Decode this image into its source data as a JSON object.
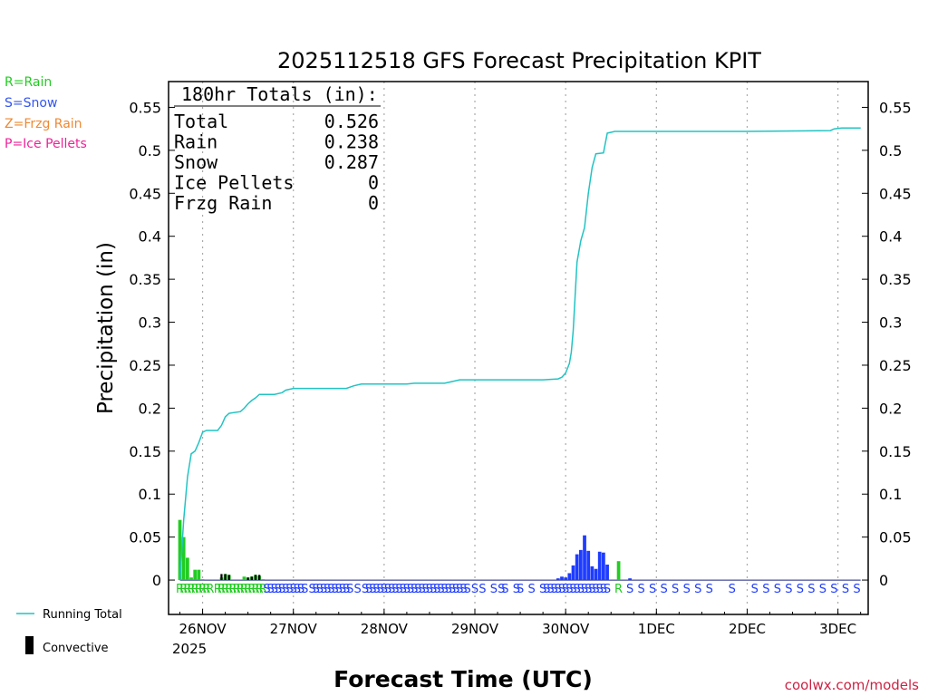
{
  "chart_data": {
    "type": "bar",
    "title": "2025112518 GFS Forecast Precipitation KPIT",
    "xlabel": "Forecast Time (UTC)",
    "ylabel": "Precipitation (in)",
    "ylim": [
      -0.04,
      0.58
    ],
    "y_ticks": [
      "0",
      "0.05",
      "0.1",
      "0.15",
      "0.2",
      "0.25",
      "0.3",
      "0.35",
      "0.4",
      "0.45",
      "0.5",
      "0.55"
    ],
    "x_range_hours": [
      -3,
      182
    ],
    "x_ticks": [
      {
        "label": "26NOV",
        "hour": 6
      },
      {
        "label": "27NOV",
        "hour": 30
      },
      {
        "label": "28NOV",
        "hour": 54
      },
      {
        "label": "29NOV",
        "hour": 78
      },
      {
        "label": "30NOV",
        "hour": 102
      },
      {
        "label": "1DEC",
        "hour": 126
      },
      {
        "label": "2DEC",
        "hour": 150
      },
      {
        "label": "3DEC",
        "hour": 174
      }
    ],
    "year_label": "2025",
    "grid": "vertical dotted at 00Z",
    "legend": {
      "type_keys": [
        {
          "text": "R=Rain",
          "color": "#22cc22"
        },
        {
          "text": "S=Snow",
          "color": "#3355ee"
        },
        {
          "text": "Z=Frzg Rain",
          "color": "#ee8833"
        },
        {
          "text": "P=Ice Pellets",
          "color": "#ee2299"
        }
      ],
      "running_total": "Running Total",
      "convective": "Convective"
    },
    "totals_box": {
      "header": "180hr Totals (in):",
      "rows": [
        {
          "label": "Total",
          "value": "0.526"
        },
        {
          "label": "Rain",
          "value": "0.238"
        },
        {
          "label": "Snow",
          "value": "0.287"
        },
        {
          "label": "Ice Pellets",
          "value": "0"
        },
        {
          "label": "Frzg Rain",
          "value": "0"
        }
      ]
    },
    "running_total": [
      [
        0,
        0
      ],
      [
        1,
        0.07
      ],
      [
        2,
        0.12
      ],
      [
        3,
        0.147
      ],
      [
        4,
        0.15
      ],
      [
        5,
        0.16
      ],
      [
        6,
        0.172
      ],
      [
        7,
        0.174
      ],
      [
        10,
        0.174
      ],
      [
        11,
        0.18
      ],
      [
        12,
        0.19
      ],
      [
        13,
        0.194
      ],
      [
        16,
        0.196
      ],
      [
        17,
        0.2
      ],
      [
        18,
        0.205
      ],
      [
        19,
        0.209
      ],
      [
        20,
        0.212
      ],
      [
        21,
        0.216
      ],
      [
        25,
        0.216
      ],
      [
        27,
        0.218
      ],
      [
        28,
        0.221
      ],
      [
        30,
        0.223
      ],
      [
        44,
        0.223
      ],
      [
        46,
        0.226
      ],
      [
        48,
        0.228
      ],
      [
        60,
        0.228
      ],
      [
        62,
        0.229
      ],
      [
        70,
        0.229
      ],
      [
        72,
        0.231
      ],
      [
        74,
        0.233
      ],
      [
        96,
        0.233
      ],
      [
        100,
        0.234
      ],
      [
        101,
        0.236
      ],
      [
        102,
        0.241
      ],
      [
        103,
        0.252
      ],
      [
        103.5,
        0.265
      ],
      [
        104,
        0.29
      ],
      [
        104.5,
        0.33
      ],
      [
        105,
        0.37
      ],
      [
        106,
        0.395
      ],
      [
        107,
        0.41
      ],
      [
        108,
        0.45
      ],
      [
        109,
        0.48
      ],
      [
        110,
        0.496
      ],
      [
        112,
        0.497
      ],
      [
        113,
        0.52
      ],
      [
        114,
        0.521
      ],
      [
        115,
        0.522
      ],
      [
        150,
        0.522
      ],
      [
        172,
        0.523
      ],
      [
        173,
        0.525
      ],
      [
        175,
        0.526
      ],
      [
        180,
        0.526
      ]
    ],
    "bars": [
      {
        "hour": 0,
        "value": 0.07,
        "type": "R"
      },
      {
        "hour": 1,
        "value": 0.05,
        "type": "R"
      },
      {
        "hour": 2,
        "value": 0.026,
        "type": "R"
      },
      {
        "hour": 3,
        "value": 0.003,
        "type": "R"
      },
      {
        "hour": 4,
        "value": 0.012,
        "type": "R"
      },
      {
        "hour": 5,
        "value": 0.012,
        "type": "R"
      },
      {
        "hour": 6,
        "value": 0.001,
        "type": "R"
      },
      {
        "hour": 11,
        "value": 0.003,
        "type": "R"
      },
      {
        "hour": 12,
        "value": 0.007,
        "type": "R"
      },
      {
        "hour": 13,
        "value": 0.006,
        "type": "R"
      },
      {
        "hour": 17,
        "value": 0.004,
        "type": "R"
      },
      {
        "hour": 18,
        "value": 0.003,
        "type": "R"
      },
      {
        "hour": 19,
        "value": 0.004,
        "type": "R"
      },
      {
        "hour": 20,
        "value": 0.006,
        "type": "R"
      },
      {
        "hour": 21,
        "value": 0.005,
        "type": "R"
      },
      {
        "hour": 22,
        "value": 0.001,
        "type": "R"
      },
      {
        "hour": 100,
        "value": 0.002,
        "type": "S"
      },
      {
        "hour": 101,
        "value": 0.004,
        "type": "S"
      },
      {
        "hour": 102,
        "value": 0.003,
        "type": "S"
      },
      {
        "hour": 103,
        "value": 0.008,
        "type": "S"
      },
      {
        "hour": 104,
        "value": 0.017,
        "type": "S"
      },
      {
        "hour": 105,
        "value": 0.03,
        "type": "S"
      },
      {
        "hour": 106,
        "value": 0.035,
        "type": "S"
      },
      {
        "hour": 107,
        "value": 0.052,
        "type": "S"
      },
      {
        "hour": 108,
        "value": 0.034,
        "type": "S"
      },
      {
        "hour": 109,
        "value": 0.016,
        "type": "S"
      },
      {
        "hour": 110,
        "value": 0.013,
        "type": "S"
      },
      {
        "hour": 111,
        "value": 0.033,
        "type": "S"
      },
      {
        "hour": 112,
        "value": 0.032,
        "type": "S"
      },
      {
        "hour": 113,
        "value": 0.018,
        "type": "S"
      },
      {
        "hour": 116,
        "value": 0.022,
        "type": "R"
      },
      {
        "hour": 119,
        "value": 0.002,
        "type": "S"
      }
    ],
    "convective_bars": [
      {
        "hour": 11,
        "value": 0.007
      },
      {
        "hour": 12,
        "value": 0.007
      },
      {
        "hour": 13,
        "value": 0.006
      },
      {
        "hour": 18,
        "value": 0.003
      },
      {
        "hour": 19,
        "value": 0.004
      },
      {
        "hour": 20,
        "value": 0.006
      },
      {
        "hour": 21,
        "value": 0.006
      }
    ],
    "type_marks": [
      {
        "hour": 0,
        "type": "R"
      },
      {
        "hour": 1,
        "type": "R"
      },
      {
        "hour": 2,
        "type": "R"
      },
      {
        "hour": 3,
        "type": "R"
      },
      {
        "hour": 4,
        "type": "R"
      },
      {
        "hour": 5,
        "type": "R"
      },
      {
        "hour": 6,
        "type": "R"
      },
      {
        "hour": 7,
        "type": "R"
      },
      {
        "hour": 8,
        "type": "R"
      },
      {
        "hour": 10,
        "type": "R"
      },
      {
        "hour": 11,
        "type": "R"
      },
      {
        "hour": 12,
        "type": "R"
      },
      {
        "hour": 13,
        "type": "R"
      },
      {
        "hour": 14,
        "type": "R"
      },
      {
        "hour": 15,
        "type": "R"
      },
      {
        "hour": 16,
        "type": "R"
      },
      {
        "hour": 17,
        "type": "R"
      },
      {
        "hour": 18,
        "type": "R"
      },
      {
        "hour": 19,
        "type": "R"
      },
      {
        "hour": 20,
        "type": "R"
      },
      {
        "hour": 21,
        "type": "R"
      },
      {
        "hour": 22,
        "type": "R"
      },
      {
        "hour": 23,
        "type": "S"
      },
      {
        "hour": 24,
        "type": "S"
      },
      {
        "hour": 25,
        "type": "S"
      },
      {
        "hour": 26,
        "type": "S"
      },
      {
        "hour": 27,
        "type": "S"
      },
      {
        "hour": 28,
        "type": "S"
      },
      {
        "hour": 29,
        "type": "S"
      },
      {
        "hour": 30,
        "type": "S"
      },
      {
        "hour": 31,
        "type": "S"
      },
      {
        "hour": 32,
        "type": "S"
      },
      {
        "hour": 33,
        "type": "S"
      },
      {
        "hour": 35,
        "type": "S"
      },
      {
        "hour": 36,
        "type": "S"
      },
      {
        "hour": 37,
        "type": "S"
      },
      {
        "hour": 38,
        "type": "S"
      },
      {
        "hour": 39,
        "type": "S"
      },
      {
        "hour": 40,
        "type": "S"
      },
      {
        "hour": 41,
        "type": "S"
      },
      {
        "hour": 42,
        "type": "S"
      },
      {
        "hour": 43,
        "type": "S"
      },
      {
        "hour": 44,
        "type": "S"
      },
      {
        "hour": 45,
        "type": "S"
      },
      {
        "hour": 47,
        "type": "S"
      },
      {
        "hour": 49,
        "type": "S"
      },
      {
        "hour": 50,
        "type": "S"
      },
      {
        "hour": 51,
        "type": "S"
      },
      {
        "hour": 52,
        "type": "S"
      },
      {
        "hour": 53,
        "type": "S"
      },
      {
        "hour": 54,
        "type": "S"
      },
      {
        "hour": 55,
        "type": "S"
      },
      {
        "hour": 56,
        "type": "S"
      },
      {
        "hour": 57,
        "type": "S"
      },
      {
        "hour": 58,
        "type": "S"
      },
      {
        "hour": 59,
        "type": "S"
      },
      {
        "hour": 60,
        "type": "S"
      },
      {
        "hour": 61,
        "type": "S"
      },
      {
        "hour": 62,
        "type": "S"
      },
      {
        "hour": 63,
        "type": "S"
      },
      {
        "hour": 64,
        "type": "S"
      },
      {
        "hour": 65,
        "type": "S"
      },
      {
        "hour": 66,
        "type": "S"
      },
      {
        "hour": 67,
        "type": "S"
      },
      {
        "hour": 68,
        "type": "S"
      },
      {
        "hour": 69,
        "type": "S"
      },
      {
        "hour": 70,
        "type": "S"
      },
      {
        "hour": 71,
        "type": "S"
      },
      {
        "hour": 72,
        "type": "S"
      },
      {
        "hour": 73,
        "type": "S"
      },
      {
        "hour": 74,
        "type": "S"
      },
      {
        "hour": 75,
        "type": "S"
      },
      {
        "hour": 76,
        "type": "S"
      },
      {
        "hour": 78,
        "type": "S"
      },
      {
        "hour": 80,
        "type": "S"
      },
      {
        "hour": 83,
        "type": "S"
      },
      {
        "hour": 85,
        "type": "S"
      },
      {
        "hour": 86,
        "type": "S"
      },
      {
        "hour": 89,
        "type": "S"
      },
      {
        "hour": 90,
        "type": "S"
      },
      {
        "hour": 93,
        "type": "S"
      },
      {
        "hour": 96,
        "type": "S"
      },
      {
        "hour": 97,
        "type": "S"
      },
      {
        "hour": 98,
        "type": "S"
      },
      {
        "hour": 99,
        "type": "S"
      },
      {
        "hour": 100,
        "type": "S"
      },
      {
        "hour": 101,
        "type": "S"
      },
      {
        "hour": 102,
        "type": "S"
      },
      {
        "hour": 103,
        "type": "S"
      },
      {
        "hour": 104,
        "type": "S"
      },
      {
        "hour": 105,
        "type": "S"
      },
      {
        "hour": 106,
        "type": "S"
      },
      {
        "hour": 107,
        "type": "S"
      },
      {
        "hour": 108,
        "type": "S"
      },
      {
        "hour": 109,
        "type": "S"
      },
      {
        "hour": 110,
        "type": "S"
      },
      {
        "hour": 111,
        "type": "S"
      },
      {
        "hour": 112,
        "type": "S"
      },
      {
        "hour": 113,
        "type": "S"
      },
      {
        "hour": 116,
        "type": "R"
      },
      {
        "hour": 119,
        "type": "S"
      },
      {
        "hour": 122,
        "type": "S"
      },
      {
        "hour": 125,
        "type": "S"
      },
      {
        "hour": 128,
        "type": "S"
      },
      {
        "hour": 131,
        "type": "S"
      },
      {
        "hour": 134,
        "type": "S"
      },
      {
        "hour": 137,
        "type": "S"
      },
      {
        "hour": 140,
        "type": "S"
      },
      {
        "hour": 146,
        "type": "S"
      },
      {
        "hour": 152,
        "type": "S"
      },
      {
        "hour": 155,
        "type": "S"
      },
      {
        "hour": 158,
        "type": "S"
      },
      {
        "hour": 161,
        "type": "S"
      },
      {
        "hour": 164,
        "type": "S"
      },
      {
        "hour": 167,
        "type": "S"
      },
      {
        "hour": 170,
        "type": "S"
      },
      {
        "hour": 173,
        "type": "S"
      },
      {
        "hour": 176,
        "type": "S"
      },
      {
        "hour": 179,
        "type": "S"
      }
    ],
    "colors": {
      "rain": "#22cc22",
      "snow": "#1e3cff",
      "running_total": "#22c3c3",
      "convective": "#000000",
      "frzg": "#ee8833",
      "ice": "#ee2299"
    }
  },
  "watermark": "coolwx.com/models"
}
